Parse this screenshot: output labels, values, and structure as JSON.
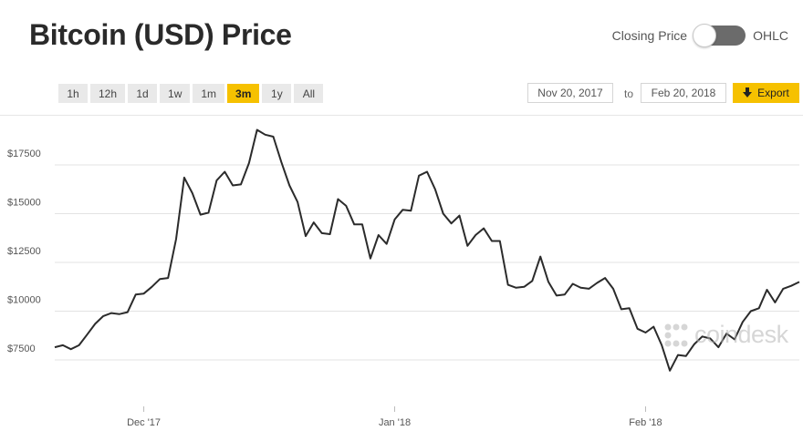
{
  "header": {
    "title": "Bitcoin (USD) Price",
    "toggle_left_label": "Closing Price",
    "toggle_right_label": "OHLC"
  },
  "toolbar": {
    "ranges": [
      "1h",
      "12h",
      "1d",
      "1w",
      "1m",
      "3m",
      "1y",
      "All"
    ],
    "active_range": "3m",
    "start_date": "Nov 20, 2017",
    "to_label": "to",
    "end_date": "Feb 20, 2018",
    "export_label": "Export"
  },
  "watermark": "coindesk",
  "colors": {
    "accent": "#f6c100",
    "line": "#2b2b2b"
  },
  "chart_data": {
    "type": "line",
    "title": "",
    "xlabel": "",
    "ylabel": "",
    "x_tick_labels": [
      "Dec '17",
      "Jan '18",
      "Feb '18"
    ],
    "y_tick_labels": [
      "$7500",
      "$10000",
      "$12500",
      "$15000",
      "$17500"
    ],
    "y_ticks": [
      7500,
      10000,
      12500,
      15000,
      17500
    ],
    "ylim": [
      5000,
      19500
    ],
    "xlim": [
      "2017-11-20",
      "2018-02-20"
    ],
    "grid": true,
    "series": [
      {
        "x": [
          "2017-11-20",
          "2017-11-21",
          "2017-11-22",
          "2017-11-23",
          "2017-11-24",
          "2017-11-25",
          "2017-11-26",
          "2017-11-27",
          "2017-11-28",
          "2017-11-29",
          "2017-11-30",
          "2017-12-01",
          "2017-12-02",
          "2017-12-03",
          "2017-12-04",
          "2017-12-05",
          "2017-12-06",
          "2017-12-07",
          "2017-12-08",
          "2017-12-09",
          "2017-12-10",
          "2017-12-11",
          "2017-12-12",
          "2017-12-13",
          "2017-12-14",
          "2017-12-15",
          "2017-12-16",
          "2017-12-17",
          "2017-12-18",
          "2017-12-19",
          "2017-12-20",
          "2017-12-21",
          "2017-12-22",
          "2017-12-23",
          "2017-12-24",
          "2017-12-25",
          "2017-12-26",
          "2017-12-27",
          "2017-12-28",
          "2017-12-29",
          "2017-12-30",
          "2017-12-31",
          "2018-01-01",
          "2018-01-02",
          "2018-01-03",
          "2018-01-04",
          "2018-01-05",
          "2018-01-06",
          "2018-01-07",
          "2018-01-08",
          "2018-01-09",
          "2018-01-10",
          "2018-01-11",
          "2018-01-12",
          "2018-01-13",
          "2018-01-14",
          "2018-01-15",
          "2018-01-16",
          "2018-01-17",
          "2018-01-18",
          "2018-01-19",
          "2018-01-20",
          "2018-01-21",
          "2018-01-22",
          "2018-01-23",
          "2018-01-24",
          "2018-01-25",
          "2018-01-26",
          "2018-01-27",
          "2018-01-28",
          "2018-01-29",
          "2018-01-30",
          "2018-01-31",
          "2018-02-01",
          "2018-02-02",
          "2018-02-03",
          "2018-02-04",
          "2018-02-05",
          "2018-02-06",
          "2018-02-07",
          "2018-02-08",
          "2018-02-09",
          "2018-02-10",
          "2018-02-11",
          "2018-02-12",
          "2018-02-13",
          "2018-02-14",
          "2018-02-15",
          "2018-02-16",
          "2018-02-17",
          "2018-02-18",
          "2018-02-19",
          "2018-02-20"
        ],
        "values": [
          8150,
          8250,
          8050,
          8250,
          8800,
          9350,
          9750,
          9900,
          9850,
          9950,
          10850,
          10900,
          11250,
          11650,
          11700,
          13700,
          16850,
          16050,
          14950,
          15050,
          16700,
          17150,
          16450,
          16500,
          17600,
          19300,
          19050,
          18950,
          17650,
          16450,
          15600,
          13850,
          14550,
          14000,
          13950,
          15750,
          15400,
          14450,
          14450,
          12700,
          13900,
          13450,
          14700,
          15200,
          15150,
          16950,
          17150,
          16250,
          15000,
          14500,
          14900,
          13350,
          13900,
          14250,
          13600,
          13600,
          11350,
          11200,
          11250,
          11550,
          12800,
          11500,
          10800,
          10850,
          11400,
          11200,
          11150,
          11450,
          11700,
          11150,
          10100,
          10150,
          9100,
          8900,
          9200,
          8250,
          6950,
          7750,
          7700,
          8300,
          8700,
          8600,
          8150,
          8850,
          8550,
          9450,
          10000,
          10150,
          11100,
          10450,
          11150,
          11300,
          11500
        ]
      }
    ]
  }
}
